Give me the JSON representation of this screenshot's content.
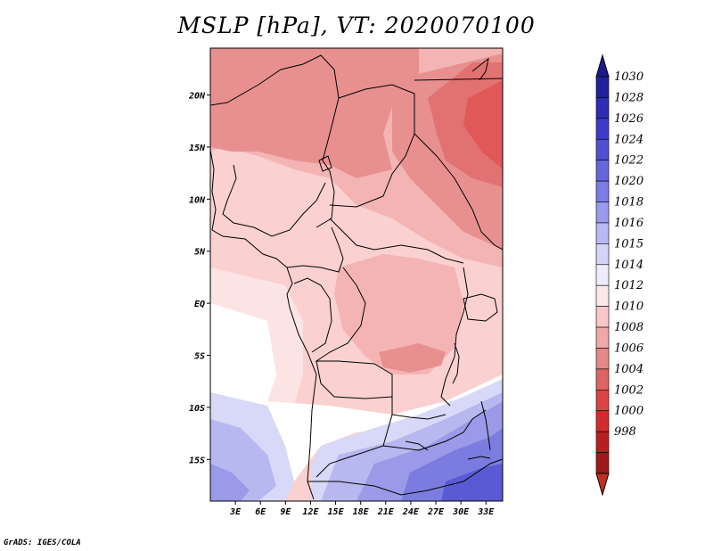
{
  "title": "MSLP [hPa], VT: 2020070100",
  "credit": "GrADS: IGES/COLA",
  "map": {
    "variable": "MSLP",
    "units": "hPa",
    "valid_time": "2020070100",
    "lon_range": [
      0,
      35
    ],
    "lat_range": [
      -19,
      24.5
    ],
    "lat_ticks": [
      {
        "value": 20,
        "label": "20N"
      },
      {
        "value": 15,
        "label": "15N"
      },
      {
        "value": 10,
        "label": "10N"
      },
      {
        "value": 5,
        "label": "5N"
      },
      {
        "value": 0,
        "label": "EQ"
      },
      {
        "value": -5,
        "label": "5S"
      },
      {
        "value": -10,
        "label": "10S"
      },
      {
        "value": -15,
        "label": "15S"
      }
    ],
    "lon_ticks": [
      {
        "value": 3,
        "label": "3E"
      },
      {
        "value": 6,
        "label": "6E"
      },
      {
        "value": 9,
        "label": "9E"
      },
      {
        "value": 12,
        "label": "12E"
      },
      {
        "value": 15,
        "label": "15E"
      },
      {
        "value": 18,
        "label": "18E"
      },
      {
        "value": 21,
        "label": "21E"
      },
      {
        "value": 24,
        "label": "24E"
      },
      {
        "value": 27,
        "label": "27E"
      },
      {
        "value": 30,
        "label": "30E"
      },
      {
        "value": 33,
        "label": "33E"
      }
    ]
  },
  "colorbar": {
    "levels": [
      "1030",
      "1028",
      "1026",
      "1024",
      "1022",
      "1020",
      "1018",
      "1016",
      "1015",
      "1014",
      "1012",
      "1010",
      "1008",
      "1006",
      "1004",
      "1002",
      "1000",
      "998"
    ],
    "colors": [
      "#2020a0",
      "#2c2cb4",
      "#3c3cc8",
      "#5050d4",
      "#6666dc",
      "#7c7ce4",
      "#9a9aec",
      "#b8b8f2",
      "#d4d4f8",
      "#ececfc",
      "#fce8e8",
      "#f8c8c8",
      "#f0a8a8",
      "#e48888",
      "#dc6464",
      "#dc4444",
      "#d02c2c",
      "#b82020",
      "#a01818"
    ],
    "top_color": "#1a1a8c",
    "bottom_color": "#c03020"
  },
  "field_colors": {
    "c1004": "#e05858",
    "c1006": "#e27272",
    "c1008": "#e89090",
    "c1010": "#f4b4b4",
    "c1012": "#fad0d0",
    "c1014": "#fde4e4",
    "c1015": "#ffffff",
    "c1016": "#d8d8f8",
    "c1018": "#b8b8f0",
    "c1020": "#9a9ae8",
    "c1022": "#7c7ce0",
    "c1024": "#5a5ad4"
  }
}
